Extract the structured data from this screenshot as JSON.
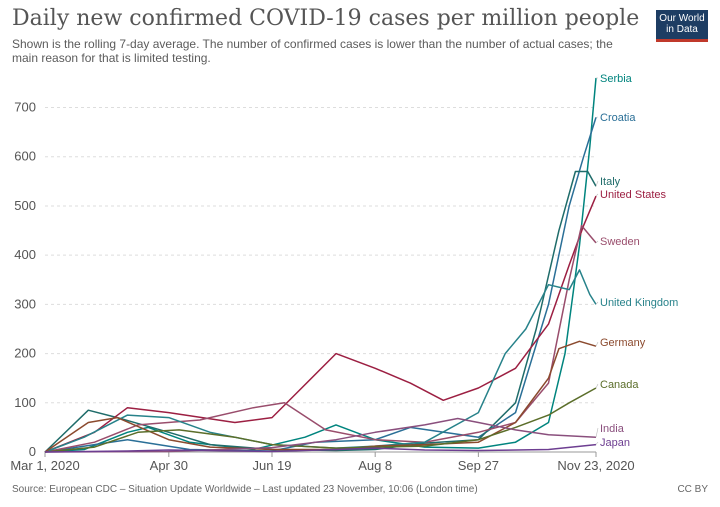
{
  "header": {
    "title": "Daily new confirmed COVID-19 cases per million people",
    "subtitle": "Shown is the rolling 7-day average. The number of confirmed cases is lower than the number of actual cases; the main reason for that is limited testing.",
    "logo_line1": "Our World",
    "logo_line2": "in Data"
  },
  "footer": {
    "source": "Source: European CDC – Situation Update Worldwide – Last updated 23 November, 10:06 (London time)",
    "license": "CC BY"
  },
  "chart_data": {
    "type": "line",
    "title": "Daily new confirmed COVID-19 cases per million people",
    "xlabel": "",
    "ylabel": "",
    "ylim": [
      0,
      760
    ],
    "xlim": [
      "2020-03-01",
      "2020-11-23"
    ],
    "yticks": [
      0,
      100,
      200,
      300,
      400,
      500,
      600,
      700
    ],
    "xticks": [
      "2020-03-01",
      "2020-04-30",
      "2020-06-19",
      "2020-08-08",
      "2020-09-27",
      "2020-11-23"
    ],
    "xtick_labels": [
      "Mar 1, 2020",
      "Apr 30",
      "Jun 19",
      "Aug 8",
      "Sep 27",
      "Nov 23, 2020"
    ],
    "grid": true,
    "series": [
      {
        "name": "Serbia",
        "color": "#00847e",
        "x": [
          "2020-03-01",
          "2020-03-20",
          "2020-04-10",
          "2020-04-20",
          "2020-05-10",
          "2020-06-10",
          "2020-07-05",
          "2020-07-20",
          "2020-08-08",
          "2020-09-01",
          "2020-09-27",
          "2020-10-15",
          "2020-10-31",
          "2020-11-08",
          "2020-11-15",
          "2020-11-20",
          "2020-11-23"
        ],
        "y": [
          0,
          5,
          40,
          50,
          20,
          5,
          30,
          55,
          25,
          10,
          8,
          20,
          60,
          200,
          420,
          620,
          760
        ]
      },
      {
        "name": "Croatia",
        "color": "#2a6f97",
        "x": [
          "2020-03-01",
          "2020-03-25",
          "2020-04-10",
          "2020-05-10",
          "2020-06-19",
          "2020-07-10",
          "2020-08-08",
          "2020-08-25",
          "2020-09-27",
          "2020-10-15",
          "2020-10-31",
          "2020-11-10",
          "2020-11-17",
          "2020-11-23"
        ],
        "y": [
          0,
          15,
          25,
          5,
          2,
          20,
          25,
          50,
          30,
          80,
          300,
          500,
          600,
          680
        ]
      },
      {
        "name": "Italy",
        "color": "#1f6c6a",
        "x": [
          "2020-03-01",
          "2020-03-22",
          "2020-04-05",
          "2020-04-30",
          "2020-05-20",
          "2020-06-19",
          "2020-07-20",
          "2020-08-08",
          "2020-09-01",
          "2020-09-27",
          "2020-10-15",
          "2020-10-25",
          "2020-11-05",
          "2020-11-13",
          "2020-11-19",
          "2020-11-23"
        ],
        "y": [
          0,
          85,
          70,
          40,
          15,
          5,
          3,
          5,
          18,
          25,
          100,
          250,
          450,
          570,
          570,
          540
        ]
      },
      {
        "name": "United States",
        "color": "#9c1f42",
        "x": [
          "2020-03-01",
          "2020-03-25",
          "2020-04-10",
          "2020-04-30",
          "2020-06-01",
          "2020-06-19",
          "2020-07-01",
          "2020-07-20",
          "2020-08-08",
          "2020-08-25",
          "2020-09-10",
          "2020-09-27",
          "2020-10-15",
          "2020-10-31",
          "2020-11-10",
          "2020-11-17",
          "2020-11-23"
        ],
        "y": [
          0,
          40,
          90,
          80,
          60,
          70,
          120,
          200,
          170,
          140,
          105,
          130,
          170,
          260,
          380,
          460,
          520
        ]
      },
      {
        "name": "Sweden",
        "color": "#994d6c",
        "x": [
          "2020-03-01",
          "2020-03-25",
          "2020-04-15",
          "2020-05-15",
          "2020-06-10",
          "2020-06-25",
          "2020-07-15",
          "2020-08-08",
          "2020-09-01",
          "2020-09-27",
          "2020-10-15",
          "2020-10-31",
          "2020-11-10",
          "2020-11-16",
          "2020-11-20",
          "2020-11-23"
        ],
        "y": [
          0,
          20,
          55,
          65,
          90,
          100,
          45,
          25,
          20,
          40,
          60,
          140,
          350,
          460,
          440,
          425
        ]
      },
      {
        "name": "United Kingdom",
        "color": "#27828a",
        "x": [
          "2020-03-01",
          "2020-03-20",
          "2020-04-10",
          "2020-04-30",
          "2020-05-20",
          "2020-06-19",
          "2020-07-20",
          "2020-08-08",
          "2020-09-01",
          "2020-09-27",
          "2020-10-10",
          "2020-10-20",
          "2020-10-31",
          "2020-11-10",
          "2020-11-15",
          "2020-11-20",
          "2020-11-23"
        ],
        "y": [
          0,
          30,
          75,
          70,
          40,
          15,
          8,
          12,
          20,
          80,
          200,
          250,
          340,
          330,
          370,
          320,
          300
        ]
      },
      {
        "name": "Germany",
        "color": "#8b4a2e",
        "x": [
          "2020-03-01",
          "2020-03-22",
          "2020-04-05",
          "2020-04-30",
          "2020-05-20",
          "2020-06-19",
          "2020-07-20",
          "2020-08-08",
          "2020-09-01",
          "2020-09-27",
          "2020-10-15",
          "2020-10-31",
          "2020-11-05",
          "2020-11-15",
          "2020-11-23"
        ],
        "y": [
          0,
          60,
          70,
          25,
          10,
          5,
          5,
          12,
          15,
          20,
          60,
          150,
          210,
          225,
          215
        ]
      },
      {
        "name": "Canada",
        "color": "#5b6e2a",
        "x": [
          "2020-03-01",
          "2020-03-25",
          "2020-04-15",
          "2020-05-05",
          "2020-06-01",
          "2020-06-19",
          "2020-07-20",
          "2020-08-08",
          "2020-09-01",
          "2020-09-27",
          "2020-10-15",
          "2020-10-31",
          "2020-11-10",
          "2020-11-23"
        ],
        "y": [
          0,
          10,
          40,
          45,
          30,
          15,
          8,
          10,
          12,
          25,
          50,
          75,
          100,
          130
        ]
      },
      {
        "name": "India",
        "color": "#8a4f7d",
        "x": [
          "2020-03-01",
          "2020-04-30",
          "2020-06-01",
          "2020-06-19",
          "2020-07-20",
          "2020-08-08",
          "2020-09-01",
          "2020-09-17",
          "2020-09-27",
          "2020-10-15",
          "2020-10-31",
          "2020-11-23"
        ],
        "y": [
          0,
          1,
          6,
          9,
          25,
          40,
          55,
          68,
          60,
          45,
          35,
          30
        ]
      },
      {
        "name": "Japan",
        "color": "#6d3e91",
        "x": [
          "2020-03-01",
          "2020-04-10",
          "2020-04-30",
          "2020-06-19",
          "2020-07-20",
          "2020-08-08",
          "2020-09-01",
          "2020-09-27",
          "2020-10-31",
          "2020-11-23"
        ],
        "y": [
          0,
          2,
          4,
          1,
          5,
          8,
          4,
          3,
          5,
          15
        ]
      }
    ]
  }
}
